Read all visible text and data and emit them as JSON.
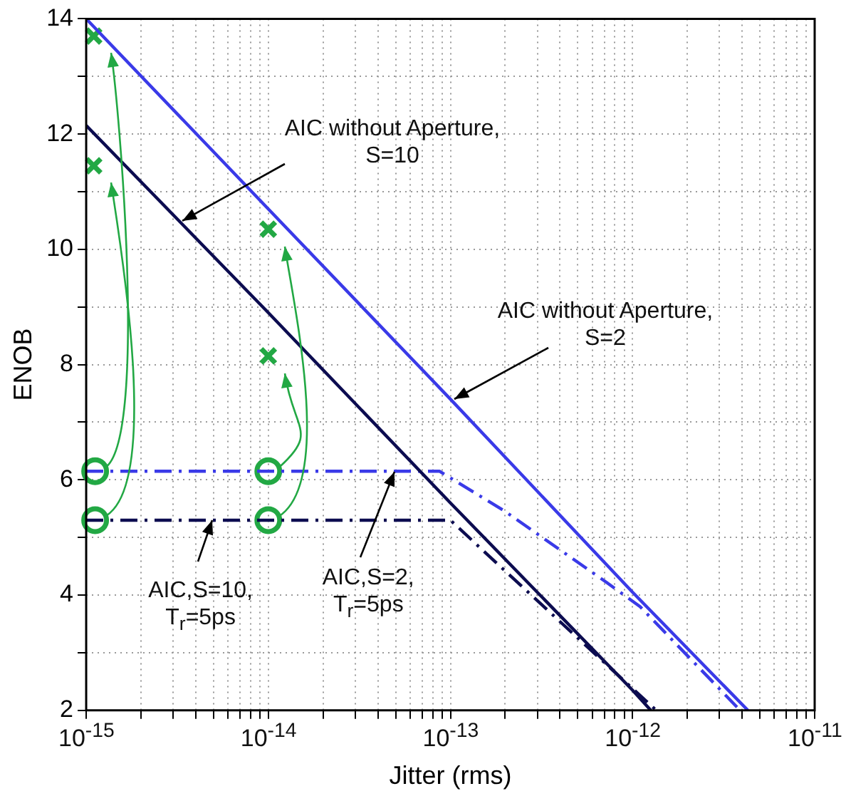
{
  "chart_data": {
    "type": "line",
    "xlabel": "Jitter (rms)",
    "ylabel": "ENOB",
    "log": "x",
    "grid": true,
    "legend": false,
    "xlim": [
      1e-15,
      1e-11
    ],
    "ylim": [
      2,
      14
    ],
    "xticks": [
      {
        "value": 1e-15,
        "label": "10$^{-15}$"
      },
      {
        "value": 2e-15,
        "label": null
      },
      {
        "value": 3e-15,
        "label": null
      },
      {
        "value": 4e-15,
        "label": null
      },
      {
        "value": 5e-15,
        "label": null
      },
      {
        "value": 6e-15,
        "label": null
      },
      {
        "value": 7e-15,
        "label": null
      },
      {
        "value": 8e-15,
        "label": null
      },
      {
        "value": 9e-15,
        "label": null
      },
      {
        "value": 1e-14,
        "label": "10$^{-14}$"
      },
      {
        "value": 2e-14,
        "label": null
      },
      {
        "value": 3e-14,
        "label": null
      },
      {
        "value": 4e-14,
        "label": null
      },
      {
        "value": 5e-14,
        "label": null
      },
      {
        "value": 6e-14,
        "label": null
      },
      {
        "value": 7e-14,
        "label": null
      },
      {
        "value": 8e-14,
        "label": null
      },
      {
        "value": 9e-14,
        "label": null
      },
      {
        "value": 1e-13,
        "label": "10$^{-13}$"
      },
      {
        "value": 2e-13,
        "label": null
      },
      {
        "value": 3e-13,
        "label": null
      },
      {
        "value": 4e-13,
        "label": null
      },
      {
        "value": 5e-13,
        "label": null
      },
      {
        "value": 6e-13,
        "label": null
      },
      {
        "value": 7e-13,
        "label": null
      },
      {
        "value": 8e-13,
        "label": null
      },
      {
        "value": 9e-13,
        "label": null
      },
      {
        "value": 1e-12,
        "label": "10$^{-12}$"
      },
      {
        "value": 2e-12,
        "label": null
      },
      {
        "value": 3e-12,
        "label": null
      },
      {
        "value": 4e-12,
        "label": null
      },
      {
        "value": 5e-12,
        "label": null
      },
      {
        "value": 6e-12,
        "label": null
      },
      {
        "value": 7e-12,
        "label": null
      },
      {
        "value": 8e-12,
        "label": null
      },
      {
        "value": 9e-12,
        "label": null
      },
      {
        "value": 1e-11,
        "label": "10$^{-11}$"
      }
    ],
    "yticks": [
      2,
      {
        "value": 3,
        "label": null
      },
      4,
      {
        "value": 5,
        "label": null
      },
      6,
      {
        "value": 7,
        "label": null
      },
      8,
      {
        "value": 9,
        "label": null
      },
      10,
      {
        "value": 11,
        "label": null
      },
      12,
      {
        "value": 13,
        "label": null
      },
      14
    ],
    "series": [
      {
        "type": "line",
        "color": "#3a3ae8",
        "line_style": "solid",
        "marker": "none",
        "x": [
          1e-15,
          1e-14,
          1e-13,
          1e-12,
          4.3e-12
        ],
        "values": [
          14,
          10.7,
          7.4,
          4.05,
          2
        ]
      },
      {
        "type": "line",
        "color": "#0c0c50",
        "line_style": "solid",
        "marker": "none",
        "x": [
          1e-15,
          1e-14,
          1e-13,
          1e-12,
          1.26e-12
        ],
        "values": [
          12.15,
          8.9,
          5.6,
          2.35,
          2
        ]
      },
      {
        "type": "line",
        "color": "#3a3ae8",
        "line_style": "dashdot",
        "marker": "none",
        "x": [
          1e-15,
          1e-14,
          8.7e-14,
          2e-13,
          7.2e-13,
          1.1e-12,
          3.9e-12
        ],
        "values": [
          6.15,
          6.15,
          6.15,
          5.45,
          4.22,
          3.8,
          2
        ]
      },
      {
        "type": "line",
        "color": "#0c0c50",
        "line_style": "dashdot",
        "marker": "none",
        "x": [
          1e-15,
          1e-14,
          1e-13,
          1.8e-13,
          1.35e-12
        ],
        "values": [
          5.3,
          5.3,
          5.3,
          4.55,
          2
        ]
      },
      {
        "type": "scatter",
        "color": "#22a844",
        "marker": "circle",
        "x": [
          1.12e-15,
          1.12e-15,
          1e-14,
          1e-14
        ],
        "values": [
          6.15,
          5.3,
          6.15,
          5.3
        ]
      },
      {
        "type": "scatter",
        "color": "#22a844",
        "marker": "cross",
        "x": [
          1.1e-15,
          1.1e-15,
          1e-14,
          1e-14
        ],
        "values": [
          13.7,
          11.45,
          10.35,
          8.15
        ]
      }
    ],
    "annotations": [
      {
        "text": "AIC without Aperture, S=10",
        "x": 3.4e-15,
        "y": 10.5
      },
      {
        "text": "AIC without Aperture, S=2",
        "x": 1.05e-13,
        "y": 7.4
      },
      {
        "text": "AIC,S=10, T$_{r}$=5ps",
        "x": 4.9e-15,
        "y": 5.3
      },
      {
        "text": "AIC,S=2, T$_{r}$=5ps",
        "x": 4.9e-14,
        "y": 6.15
      }
    ]
  }
}
